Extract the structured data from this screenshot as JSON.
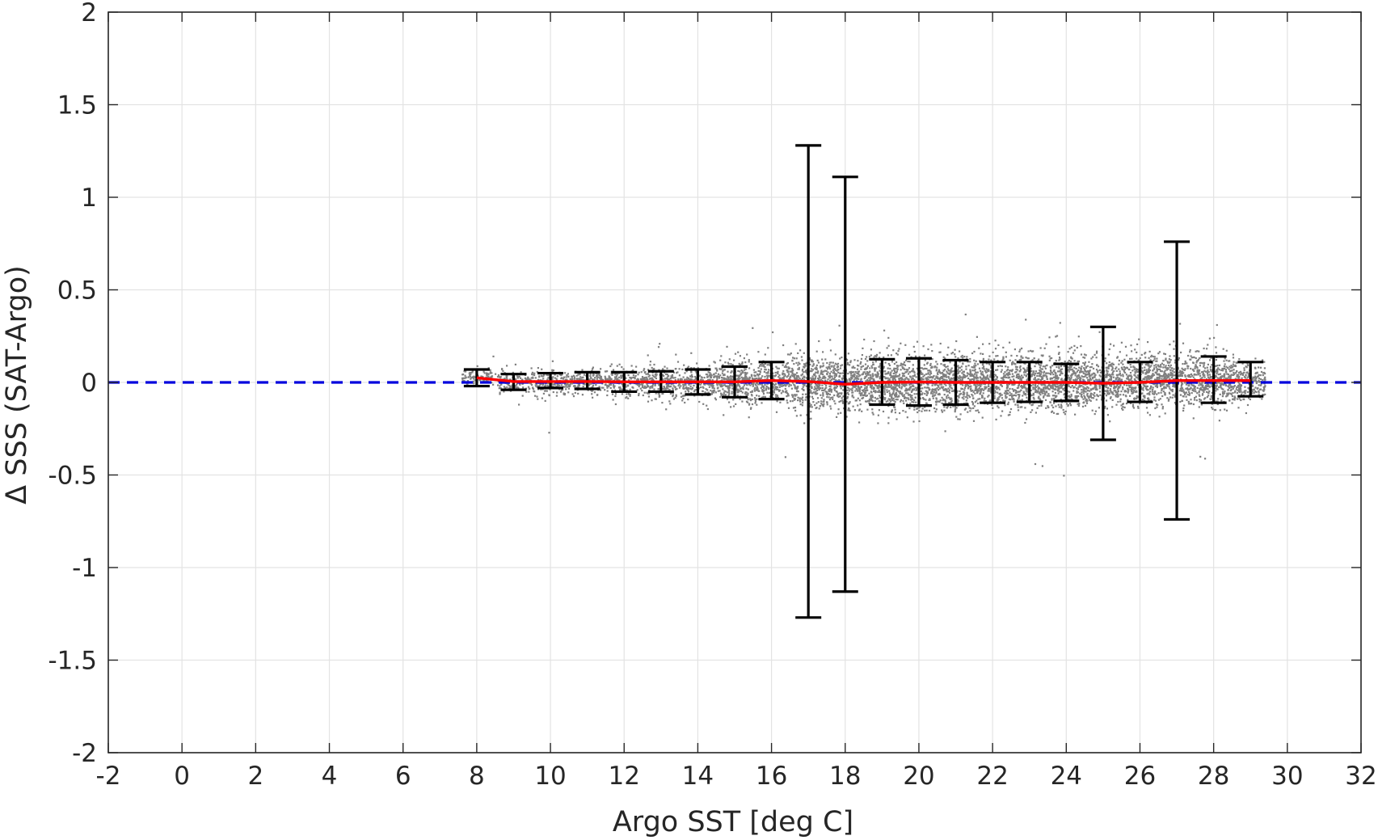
{
  "chart_data": {
    "type": "scatter",
    "title": "",
    "xlabel": "Argo SST [deg C]",
    "ylabel": "Δ SSS (SAT-Argo)",
    "xlim": [
      -2,
      32
    ],
    "ylim": [
      -2,
      2
    ],
    "xticks": [
      -2,
      0,
      2,
      4,
      6,
      8,
      10,
      12,
      14,
      16,
      18,
      20,
      22,
      24,
      26,
      28,
      30,
      32
    ],
    "xtick_labels": [
      "-2",
      "0",
      "2",
      "4",
      "6",
      "8",
      "10",
      "12",
      "14",
      "16",
      "18",
      "20",
      "22",
      "24",
      "26",
      "28",
      "30",
      "32"
    ],
    "yticks": [
      -2,
      -1.5,
      -1,
      -0.5,
      0,
      0.5,
      1,
      1.5,
      2
    ],
    "ytick_labels": [
      "-2",
      "-1.5",
      "-1",
      "-0.5",
      "0",
      "0.5",
      "1",
      "1.5",
      "2"
    ],
    "grid": true,
    "colors": {
      "scatter": "#808080",
      "mean_line": "#ff0000",
      "reference_line": "#0000dd",
      "error_bars": "#000000",
      "grid": "#e3e3e3",
      "axes": "#262626"
    },
    "reference_line": {
      "y": 0,
      "style": "dashed"
    },
    "scatter_points": {
      "description_by_bin": [
        {
          "x_from": 7.6,
          "x_to": 8.6,
          "center": 0.03,
          "spread": 0.02
        },
        {
          "x_from": 8.6,
          "x_to": 10.6,
          "center": 0.0,
          "spread": 0.03
        },
        {
          "x_from": 10.6,
          "x_to": 12.6,
          "center": 0.0,
          "spread": 0.035
        },
        {
          "x_from": 12.6,
          "x_to": 14.6,
          "center": 0.0,
          "spread": 0.045
        },
        {
          "x_from": 14.6,
          "x_to": 16.6,
          "center": 0.0,
          "spread": 0.06
        },
        {
          "x_from": 16.6,
          "x_to": 18.6,
          "center": 0.0,
          "spread": 0.07
        },
        {
          "x_from": 18.6,
          "x_to": 24.6,
          "center": 0.0,
          "spread": 0.075
        },
        {
          "x_from": 24.6,
          "x_to": 28.6,
          "center": 0.01,
          "spread": 0.07
        },
        {
          "x_from": 28.6,
          "x_to": 29.4,
          "center": 0.01,
          "spread": 0.05
        }
      ]
    },
    "mean_line": {
      "x": [
        8,
        9,
        10,
        11,
        12,
        13,
        14,
        15,
        16,
        17,
        18,
        19,
        20,
        21,
        22,
        23,
        24,
        25,
        26,
        27,
        28,
        29
      ],
      "y": [
        0.025,
        0.005,
        0.005,
        0.005,
        0.003,
        0.003,
        0.003,
        0.003,
        0.01,
        0.005,
        -0.01,
        0.0,
        0.002,
        0.0,
        0.0,
        0.0,
        0.0,
        -0.005,
        0.0,
        0.01,
        0.01,
        0.01
      ]
    },
    "error_bars": {
      "x": [
        8,
        9,
        10,
        11,
        12,
        13,
        14,
        15,
        16,
        17,
        18,
        19,
        20,
        21,
        22,
        23,
        24,
        25,
        26,
        27,
        28,
        29
      ],
      "lower": [
        -0.02,
        -0.04,
        -0.03,
        -0.035,
        -0.05,
        -0.05,
        -0.065,
        -0.08,
        -0.09,
        -1.27,
        -1.13,
        -0.12,
        -0.125,
        -0.12,
        -0.11,
        -0.105,
        -0.1,
        -0.31,
        -0.105,
        -0.74,
        -0.11,
        -0.075
      ],
      "upper": [
        0.07,
        0.045,
        0.05,
        0.055,
        0.055,
        0.06,
        0.07,
        0.085,
        0.11,
        1.28,
        1.11,
        0.125,
        0.13,
        0.12,
        0.11,
        0.11,
        0.1,
        0.3,
        0.11,
        0.76,
        0.14,
        0.11
      ]
    }
  }
}
